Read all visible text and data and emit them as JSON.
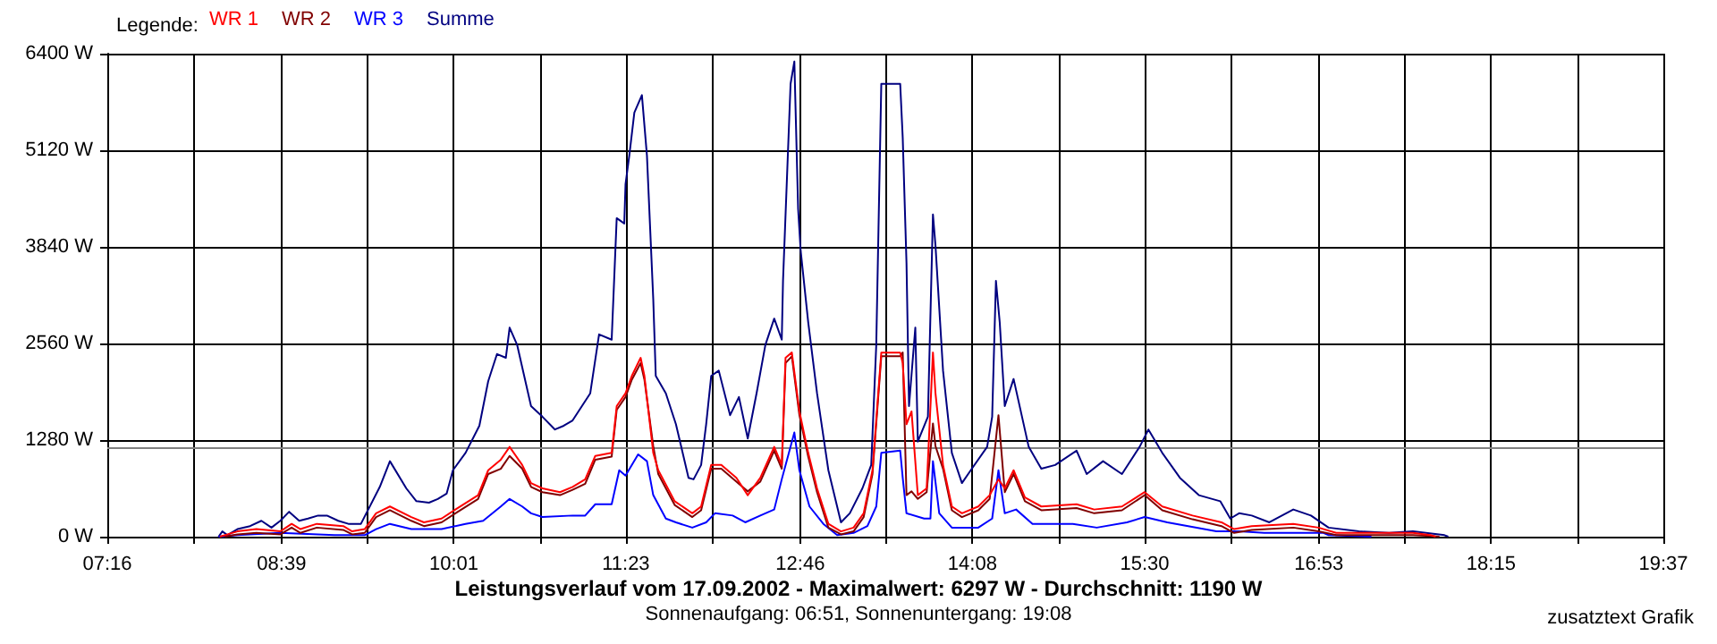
{
  "chart_data": {
    "type": "line",
    "title": "Leistungsverlauf vom 17.09.2002 - Maximalwert: 6297 W - Durchschnitt: 1190 W",
    "subtitle": "Sonnenaufgang: 06:51, Sonnenuntergang: 19:08",
    "legend_title": "Legende:",
    "annotations": [
      "zusatztext Grafik"
    ],
    "xlim": [
      7.267,
      19.617
    ],
    "xticks": [
      {
        "value": 7.267,
        "label": "07:16"
      },
      {
        "value": 7.958,
        "label": null
      },
      {
        "value": 8.65,
        "label": "08:39"
      },
      {
        "value": 9.333,
        "label": null
      },
      {
        "value": 10.017,
        "label": "10:01"
      },
      {
        "value": 10.7,
        "label": null
      },
      {
        "value": 11.383,
        "label": "11:23"
      },
      {
        "value": 12.075,
        "label": null
      },
      {
        "value": 12.767,
        "label": "12:46"
      },
      {
        "value": 13.45,
        "label": null
      },
      {
        "value": 14.133,
        "label": "14:08"
      },
      {
        "value": 14.817,
        "label": null
      },
      {
        "value": 15.5,
        "label": "15:30"
      },
      {
        "value": 16.192,
        "label": null
      },
      {
        "value": 16.883,
        "label": "16:53"
      },
      {
        "value": 17.567,
        "label": null
      },
      {
        "value": 18.25,
        "label": "18:15"
      },
      {
        "value": 18.933,
        "label": null
      },
      {
        "value": 19.617,
        "label": "19:37"
      }
    ],
    "ylim": [
      0,
      6400
    ],
    "yticks": [
      {
        "value": 0,
        "label": "0 W"
      },
      {
        "value": 1280,
        "label": "1280 W"
      },
      {
        "value": 2560,
        "label": "2560 W"
      },
      {
        "value": 3840,
        "label": "3840 W"
      },
      {
        "value": 5120,
        "label": "5120 W"
      },
      {
        "value": 6400,
        "label": "6400 W"
      }
    ],
    "grid": true,
    "legend": "top left",
    "marker": "none",
    "line_style": "solid",
    "ref_lines": [
      {
        "axis": "y",
        "value": 1190,
        "color": "#808080"
      }
    ],
    "series": [
      {
        "name": "WR 1",
        "color": "#ff0000",
        "x": [
          8.16,
          8.3,
          8.45,
          8.64,
          8.73,
          8.8,
          8.93,
          9.14,
          9.21,
          9.31,
          9.4,
          9.51,
          9.68,
          9.78,
          9.92,
          10.03,
          10.21,
          10.29,
          10.39,
          10.46,
          10.56,
          10.63,
          10.72,
          10.86,
          10.96,
          11.06,
          11.14,
          11.27,
          11.31,
          11.38,
          11.43,
          11.5,
          11.53,
          11.6,
          11.64,
          11.77,
          11.91,
          11.98,
          12.06,
          12.14,
          12.26,
          12.35,
          12.45,
          12.56,
          12.62,
          12.65,
          12.7,
          12.76,
          12.83,
          12.9,
          12.99,
          13.09,
          13.19,
          13.27,
          13.34,
          13.41,
          13.56,
          13.58,
          13.61,
          13.65,
          13.7,
          13.77,
          13.82,
          13.84,
          13.9,
          13.97,
          14.05,
          14.18,
          14.27,
          14.34,
          14.39,
          14.46,
          14.55,
          14.68,
          14.96,
          15.1,
          15.32,
          15.5,
          15.64,
          15.88,
          16.11,
          16.21,
          16.35,
          16.68,
          16.88,
          17.02,
          17.3,
          17.63,
          17.77,
          17.81
        ],
        "values": [
          0,
          70,
          100,
          70,
          170,
          100,
          170,
          140,
          70,
          100,
          310,
          400,
          260,
          190,
          240,
          360,
          550,
          880,
          1020,
          1190,
          950,
          710,
          640,
          590,
          660,
          760,
          1070,
          1110,
          1730,
          1900,
          2130,
          2370,
          2130,
          1110,
          880,
          470,
          310,
          400,
          950,
          950,
          780,
          550,
          780,
          1190,
          950,
          2370,
          2440,
          1660,
          1110,
          640,
          170,
          70,
          120,
          310,
          880,
          2440,
          2440,
          2300,
          1490,
          1660,
          550,
          640,
          2440,
          1900,
          950,
          400,
          310,
          400,
          550,
          760,
          640,
          880,
          520,
          400,
          430,
          360,
          400,
          590,
          400,
          280,
          190,
          100,
          140,
          170,
          120,
          50,
          50,
          50,
          20,
          0
        ]
      },
      {
        "name": "WR 2",
        "color": "#800000",
        "x": [
          8.2,
          8.3,
          8.45,
          8.64,
          8.73,
          8.8,
          8.93,
          9.14,
          9.21,
          9.31,
          9.4,
          9.51,
          9.68,
          9.78,
          9.92,
          10.03,
          10.21,
          10.29,
          10.39,
          10.46,
          10.56,
          10.63,
          10.72,
          10.86,
          10.96,
          11.06,
          11.14,
          11.27,
          11.31,
          11.38,
          11.43,
          11.5,
          11.53,
          11.6,
          11.64,
          11.77,
          11.91,
          11.98,
          12.06,
          12.14,
          12.26,
          12.35,
          12.45,
          12.56,
          12.62,
          12.65,
          12.7,
          12.76,
          12.83,
          12.9,
          12.99,
          13.09,
          13.19,
          13.27,
          13.34,
          13.41,
          13.56,
          13.58,
          13.61,
          13.65,
          13.7,
          13.77,
          13.82,
          13.84,
          13.9,
          13.97,
          14.05,
          14.18,
          14.27,
          14.34,
          14.39,
          14.46,
          14.55,
          14.68,
          14.96,
          15.1,
          15.32,
          15.5,
          15.64,
          15.88,
          16.11,
          16.21,
          16.35,
          16.68,
          16.88,
          17.02,
          17.3,
          17.63,
          17.77,
          17.84
        ],
        "values": [
          0,
          30,
          50,
          30,
          120,
          50,
          120,
          90,
          30,
          50,
          260,
          350,
          210,
          140,
          190,
          310,
          500,
          830,
          900,
          1070,
          900,
          660,
          590,
          550,
          620,
          700,
          1020,
          1060,
          1680,
          1850,
          2080,
          2300,
          2080,
          1200,
          830,
          420,
          260,
          350,
          900,
          900,
          730,
          600,
          730,
          1140,
          900,
          2300,
          2390,
          1610,
          1060,
          590,
          120,
          30,
          70,
          260,
          830,
          2390,
          2390,
          2440,
          550,
          600,
          500,
          590,
          1500,
          1200,
          900,
          350,
          260,
          350,
          500,
          1610,
          590,
          830,
          470,
          350,
          380,
          310,
          350,
          550,
          350,
          230,
          140,
          50,
          90,
          120,
          70,
          20,
          20,
          20,
          10,
          0
        ]
      },
      {
        "name": "WR 3",
        "color": "#0000ff",
        "x": [
          8.15,
          8.3,
          8.64,
          9.07,
          9.31,
          9.4,
          9.51,
          9.68,
          9.92,
          10.11,
          10.25,
          10.39,
          10.46,
          10.56,
          10.63,
          10.72,
          10.96,
          11.06,
          11.14,
          11.27,
          11.33,
          11.38,
          11.48,
          11.55,
          11.6,
          11.7,
          11.78,
          11.91,
          12.02,
          12.09,
          12.23,
          12.33,
          12.45,
          12.56,
          12.62,
          12.72,
          12.76,
          12.84,
          12.95,
          13.06,
          13.19,
          13.3,
          13.37,
          13.41,
          13.56,
          13.58,
          13.61,
          13.75,
          13.8,
          13.82,
          13.87,
          13.97,
          14.18,
          14.29,
          14.34,
          14.39,
          14.48,
          14.61,
          14.93,
          15.12,
          15.36,
          15.5,
          15.68,
          16.07,
          16.25,
          16.45,
          16.92,
          16.96,
          17.3
        ],
        "values": [
          0,
          20,
          50,
          20,
          20,
          100,
          170,
          100,
          100,
          170,
          210,
          400,
          500,
          400,
          310,
          260,
          280,
          280,
          430,
          430,
          880,
          810,
          1090,
          1000,
          550,
          240,
          190,
          120,
          190,
          310,
          280,
          190,
          280,
          360,
          760,
          1380,
          880,
          400,
          170,
          20,
          50,
          140,
          400,
          1110,
          1140,
          780,
          310,
          240,
          240,
          1000,
          310,
          120,
          120,
          240,
          880,
          310,
          360,
          170,
          170,
          120,
          190,
          260,
          190,
          70,
          70,
          50,
          50,
          20,
          0
        ]
      },
      {
        "name": "Summe",
        "color": "#000080",
        "x": [
          8.15,
          8.18,
          8.22,
          8.3,
          8.4,
          8.49,
          8.57,
          8.64,
          8.71,
          8.79,
          8.86,
          8.94,
          9.01,
          9.1,
          9.18,
          9.28,
          9.43,
          9.51,
          9.64,
          9.72,
          9.82,
          9.89,
          9.96,
          10.01,
          10.11,
          10.22,
          10.29,
          10.36,
          10.43,
          10.46,
          10.52,
          10.63,
          10.72,
          10.82,
          10.89,
          10.96,
          11.1,
          11.17,
          11.27,
          11.31,
          11.37,
          11.38,
          11.41,
          11.45,
          11.51,
          11.55,
          11.6,
          11.62,
          11.7,
          11.78,
          11.88,
          11.92,
          11.98,
          12.02,
          12.06,
          12.12,
          12.21,
          12.28,
          12.35,
          12.42,
          12.49,
          12.56,
          12.62,
          12.63,
          12.69,
          12.72,
          12.75,
          12.77,
          12.83,
          12.9,
          12.99,
          13.09,
          13.16,
          13.26,
          13.33,
          13.37,
          13.41,
          13.56,
          13.58,
          13.61,
          13.63,
          13.68,
          13.7,
          13.78,
          13.82,
          13.84,
          13.9,
          13.97,
          14.05,
          14.12,
          14.25,
          14.29,
          14.32,
          14.35,
          14.39,
          14.46,
          14.58,
          14.68,
          14.79,
          14.96,
          15.04,
          15.17,
          15.32,
          15.46,
          15.53,
          15.64,
          15.78,
          15.93,
          16.1,
          16.18,
          16.25,
          16.35,
          16.49,
          16.68,
          16.82,
          16.96,
          17.2,
          17.44,
          17.63,
          17.88,
          17.91
        ],
        "values": [
          0,
          70,
          20,
          100,
          140,
          210,
          120,
          210,
          330,
          210,
          240,
          280,
          280,
          210,
          170,
          170,
          660,
          1000,
          640,
          470,
          450,
          500,
          570,
          880,
          1110,
          1470,
          2060,
          2420,
          2370,
          2770,
          2540,
          1730,
          1590,
          1420,
          1470,
          1540,
          1900,
          2680,
          2610,
          4220,
          4150,
          4670,
          5050,
          5620,
          5850,
          5050,
          3150,
          2130,
          1900,
          1490,
          780,
          760,
          950,
          1490,
          2130,
          2200,
          1610,
          1850,
          1300,
          1900,
          2540,
          2890,
          2610,
          3390,
          6000,
          6297,
          4340,
          3790,
          2840,
          1900,
          880,
          190,
          310,
          640,
          950,
          2540,
          6000,
          6000,
          5290,
          3630,
          1730,
          2770,
          1260,
          1590,
          4270,
          3860,
          2200,
          1110,
          710,
          880,
          1190,
          1590,
          3390,
          2840,
          1730,
          2090,
          1190,
          900,
          950,
          1140,
          830,
          1000,
          830,
          1190,
          1420,
          1110,
          780,
          550,
          470,
          240,
          310,
          280,
          190,
          360,
          280,
          120,
          70,
          50,
          70,
          20,
          0
        ]
      }
    ]
  }
}
